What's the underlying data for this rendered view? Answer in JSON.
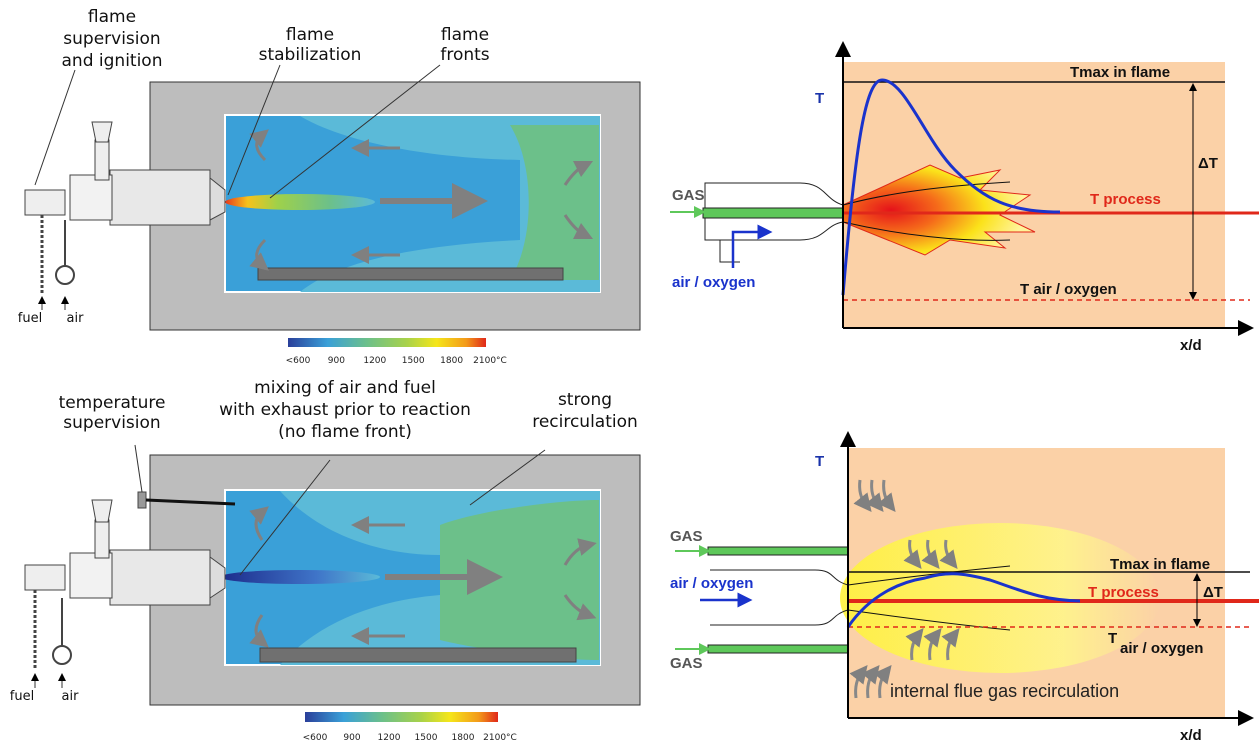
{
  "top": {
    "annotations": [
      {
        "lines": [
          "flame",
          "supervision",
          "and ignition"
        ]
      },
      {
        "lines": [
          "flame",
          "stabilization"
        ]
      },
      {
        "lines": [
          "flame",
          "fronts"
        ]
      }
    ],
    "fuel": "fuel",
    "air": "air",
    "scale": [
      "<600",
      "900",
      "1200",
      "1500",
      "1800",
      "2100°C"
    ],
    "profile": {
      "y_axis": "T",
      "x_axis": "x/d",
      "gas": "GAS",
      "air_oxygen": "air / oxygen",
      "tmax": "Tmax in flame",
      "tprocess": "T process",
      "tair": "T air / oxygen",
      "delta": "ΔT"
    }
  },
  "bottom": {
    "annotations": [
      {
        "lines": [
          "temperature",
          "supervision"
        ]
      },
      {
        "lines": [
          "mixing of air and fuel",
          "with exhaust prior to reaction",
          "(no flame front)"
        ]
      },
      {
        "lines": [
          "strong",
          "recirculation"
        ]
      }
    ],
    "fuel": "fuel",
    "air": "air",
    "scale": [
      "<600",
      "900",
      "1200",
      "1500",
      "1800",
      "2100°C"
    ],
    "profile": {
      "y_axis": "T",
      "x_axis": "x/d",
      "gas_top": "GAS",
      "gas_bottom": "GAS",
      "air_oxygen": "air / oxygen",
      "tmax": "Tmax in flame",
      "tprocess": "T process",
      "tair_t": "T",
      "tair": "air / oxygen",
      "delta": "ΔT",
      "recirculation": "internal flue gas recirculation"
    }
  }
}
